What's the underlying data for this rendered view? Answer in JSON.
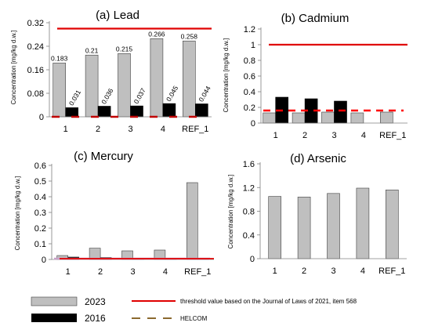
{
  "legend": {
    "series_2023": "2023",
    "series_2016": "2016",
    "threshold": "threshold value based on the Journal of Laws of 2021, item 568",
    "helcom": "HELCOM"
  },
  "colors": {
    "bar_2023": "#bfbfbf",
    "bar_2016": "#000000",
    "threshold": "#e00000",
    "helcom_lead": "#c00000",
    "helcom": "#ff0000",
    "helcom_legend": "#8b6a2f",
    "mercury_helcom": "#c8a0c8"
  },
  "chart_data": [
    {
      "type": "bar",
      "title": "(a) Lead",
      "ylabel": "Concentration [mg/kg d.w.]",
      "categories": [
        "1",
        "2",
        "3",
        "4",
        "REF_1"
      ],
      "series": [
        {
          "name": "2023",
          "values": [
            0.183,
            0.21,
            0.215,
            0.266,
            0.258
          ]
        },
        {
          "name": "2016",
          "values": [
            0.031,
            0.036,
            0.037,
            0.045,
            0.044
          ]
        }
      ],
      "data_labels": {
        "2023": [
          "0.183",
          "0.21",
          "0.215",
          "0.266",
          "0.258"
        ],
        "2016": [
          "0.031",
          "0.036",
          "0.037",
          "0.045",
          "0.044"
        ]
      },
      "threshold": 0.3,
      "helcom": 0,
      "ylim": [
        0,
        0.32
      ],
      "yticks": [
        0,
        0.08,
        0.16,
        0.24,
        0.32
      ],
      "ytick_labels": [
        "0",
        "0.08",
        "0.16",
        "0.24",
        "0.32"
      ],
      "grid": false
    },
    {
      "type": "bar",
      "title": "(b) Cadmium",
      "ylabel": "Concentration [mg/kg d.w.]",
      "categories": [
        "1",
        "2",
        "3",
        "4",
        "REF_1"
      ],
      "series": [
        {
          "name": "2023",
          "values": [
            0.13,
            0.13,
            0.14,
            0.13,
            0.14
          ]
        },
        {
          "name": "2016",
          "values": [
            0.33,
            0.31,
            0.28,
            null,
            null
          ]
        }
      ],
      "threshold": 1.0,
      "helcom": 0.16,
      "ylim": [
        0,
        1.2
      ],
      "yticks": [
        0,
        0.2,
        0.4,
        0.6,
        0.8,
        1.0,
        1.2
      ],
      "ytick_labels": [
        "0",
        "0.2",
        "0.4",
        "0.6",
        "0.8",
        "1",
        "1.2"
      ],
      "grid": false
    },
    {
      "type": "bar",
      "title": "(c) Mercury",
      "ylabel": "Concentration [mg/kg d.w.]",
      "categories": [
        "1",
        "2",
        "3",
        "4",
        "REF_1"
      ],
      "series": [
        {
          "name": "2023",
          "values": [
            0.025,
            0.072,
            0.055,
            0.06,
            0.49
          ]
        },
        {
          "name": "2016",
          "values": [
            0.015,
            0.012,
            0.008,
            0.006,
            0.004
          ]
        }
      ],
      "threshold": 0.005,
      "helcom": 0.005,
      "ylim": [
        0,
        0.6
      ],
      "yticks": [
        0,
        0.1,
        0.2,
        0.3,
        0.4,
        0.5,
        0.6
      ],
      "ytick_labels": [
        "0",
        "0.1",
        "0.2",
        "0.3",
        "0.4",
        "0.5",
        "0.6"
      ],
      "grid": false
    },
    {
      "type": "bar",
      "title": "(d) Arsenic",
      "ylabel": "Concentration [mg/kg d.w.]",
      "categories": [
        "1",
        "2",
        "3",
        "4",
        "REF_1"
      ],
      "series": [
        {
          "name": "2023",
          "values": [
            1.05,
            1.04,
            1.1,
            1.19,
            1.16
          ]
        }
      ],
      "ylim": [
        0,
        1.6
      ],
      "yticks": [
        0,
        0.4,
        0.8,
        1.2,
        1.6
      ],
      "ytick_labels": [
        "0",
        "0.4",
        "0.8",
        "1.2",
        "1.6"
      ],
      "grid": false
    }
  ]
}
